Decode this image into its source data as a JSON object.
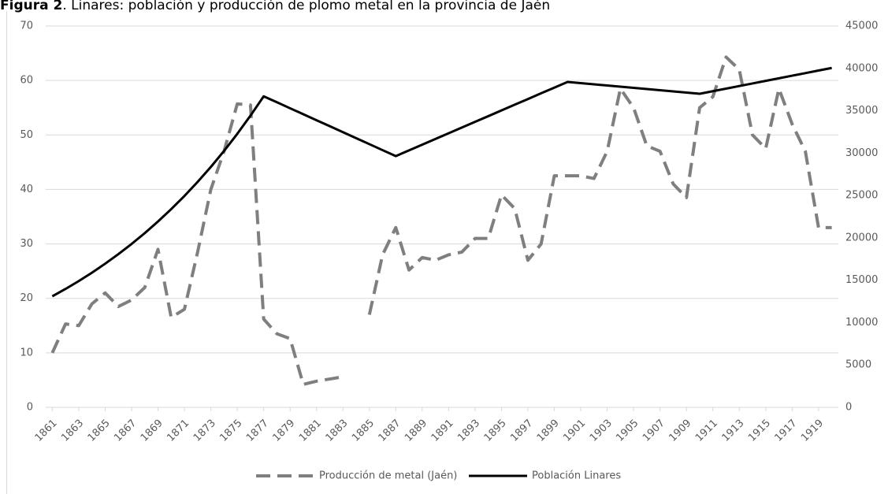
{
  "chart_data": {
    "type": "line",
    "figure_label": "Figura 2",
    "title": ". Linares: población y producción de plomo metal en la provincia de Jaén",
    "x": [
      1861,
      1862,
      1863,
      1864,
      1865,
      1866,
      1867,
      1868,
      1869,
      1870,
      1871,
      1872,
      1873,
      1874,
      1875,
      1876,
      1877,
      1878,
      1879,
      1880,
      1881,
      1882,
      1883,
      1884,
      1885,
      1886,
      1887,
      1888,
      1889,
      1890,
      1891,
      1892,
      1893,
      1894,
      1895,
      1896,
      1897,
      1898,
      1899,
      1900,
      1901,
      1902,
      1903,
      1904,
      1905,
      1906,
      1907,
      1908,
      1909,
      1910,
      1911,
      1912,
      1913,
      1914,
      1915,
      1916,
      1917,
      1918,
      1919,
      1920
    ],
    "xlim": [
      1860.5,
      1920.5
    ],
    "xticks": [
      1861,
      1863,
      1865,
      1867,
      1869,
      1871,
      1873,
      1875,
      1877,
      1879,
      1881,
      1883,
      1885,
      1887,
      1889,
      1891,
      1893,
      1895,
      1897,
      1899,
      1901,
      1903,
      1905,
      1907,
      1909,
      1911,
      1913,
      1915,
      1917,
      1919
    ],
    "ylim": [
      0,
      70
    ],
    "yticks": [
      0,
      10,
      20,
      30,
      40,
      50,
      60,
      70
    ],
    "y2lim": [
      0,
      45000
    ],
    "y2ticks": [
      0,
      5000,
      10000,
      15000,
      20000,
      25000,
      30000,
      35000,
      40000,
      45000
    ],
    "grid": true,
    "legend": "bottom",
    "series": [
      {
        "name": "Producción de metal  (Jaén)",
        "color": "#7f7f7f",
        "dashed": true,
        "values": [
          10,
          15.3,
          15,
          19,
          21,
          18.5,
          19.7,
          22,
          29,
          16.5,
          18,
          28.5,
          40,
          47,
          55.7,
          55.5,
          16.2,
          13.5,
          12.6,
          4.2,
          4.8,
          5.2,
          5.6,
          null,
          17,
          28,
          33,
          25.2,
          27.5,
          27,
          28,
          28.5,
          31,
          31,
          39,
          36.5,
          27,
          30,
          42.5,
          42.5,
          42.5,
          42,
          47,
          58.5,
          55,
          48,
          47,
          41,
          38.5,
          55,
          57,
          64.3,
          62,
          50,
          47.5,
          58.5,
          52,
          47,
          33,
          33
        ]
      },
      {
        "name": "Población Linares",
        "color": "#000000",
        "axis": "y2",
        "values": [
          13100,
          13970,
          14900,
          15890,
          16950,
          18080,
          19280,
          20560,
          21930,
          23390,
          24940,
          26600,
          28370,
          30260,
          32270,
          34420,
          36700,
          36000,
          35290,
          34590,
          33880,
          33180,
          32470,
          31760,
          31060,
          30350,
          29650,
          30320,
          31000,
          31670,
          32340,
          33020,
          33690,
          34360,
          35040,
          35710,
          36380,
          37060,
          37730,
          38400,
          38260,
          38120,
          37980,
          37840,
          37700,
          37560,
          37420,
          37280,
          37140,
          37000,
          37305,
          37610,
          37915,
          38220,
          38525,
          38830,
          39135,
          39440,
          39745,
          40050
        ]
      }
    ]
  }
}
